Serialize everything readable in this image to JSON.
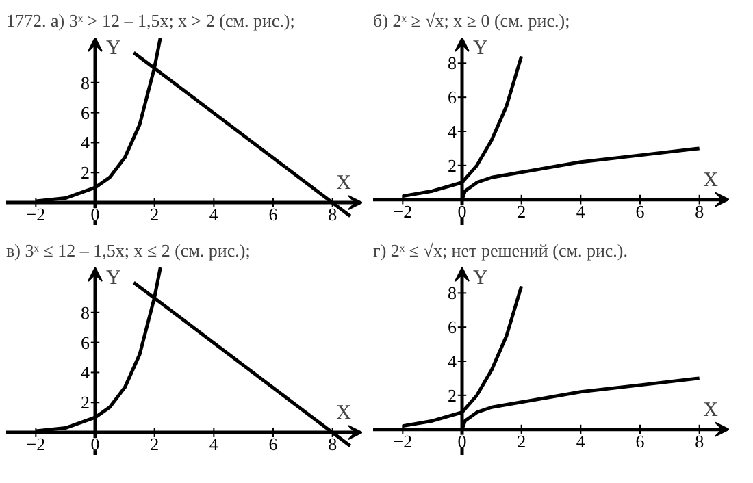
{
  "chart_data": [
    {
      "type": "line",
      "title": "1772. а) 3ˣ > 12 – 1,5x; x > 2 (см. рис.);",
      "xlabel": "X",
      "ylabel": "Y",
      "xlim": [
        -3,
        9
      ],
      "ylim": [
        -1.5,
        11
      ],
      "xticks": [
        -2,
        0,
        2,
        4,
        6,
        8
      ],
      "yticks": [
        2,
        4,
        6,
        8
      ],
      "grid": false,
      "series": [
        {
          "color": "#000000",
          "x": [
            -2,
            -1,
            0,
            0.5,
            1,
            1.5,
            2,
            2.2
          ],
          "values": [
            0.1,
            0.3,
            1,
            1.7,
            3,
            5.2,
            9,
            11
          ]
        },
        {
          "color": "#000000",
          "x": [
            1.3,
            8.6
          ],
          "values": [
            10,
            -0.9
          ]
        }
      ]
    },
    {
      "type": "line",
      "title": "б) 2ˣ ≥ √x; x ≥ 0 (см. рис.);",
      "xlabel": "X",
      "ylabel": "Y",
      "xlim": [
        -3,
        9
      ],
      "ylim": [
        -1.5,
        9.5
      ],
      "xticks": [
        -2,
        0,
        2,
        4,
        6,
        8
      ],
      "yticks": [
        2,
        4,
        6,
        8
      ],
      "grid": false,
      "series": [
        {
          "color": "#000000",
          "x": [
            -2,
            -1,
            0,
            0.5,
            1,
            1.5,
            2
          ],
          "values": [
            0.2,
            0.5,
            1,
            2,
            3.5,
            5.5,
            8.4
          ]
        },
        {
          "color": "#000000",
          "x": [
            0,
            0.1,
            0.5,
            1,
            2,
            4,
            6,
            8
          ],
          "values": [
            0,
            0.5,
            1,
            1.3,
            1.6,
            2.2,
            2.6,
            3
          ]
        }
      ]
    },
    {
      "type": "line",
      "title": "в) 3ˣ ≤ 12 – 1,5x; x ≤ 2 (см. рис.);",
      "xlabel": "X",
      "ylabel": "Y",
      "xlim": [
        -3,
        9
      ],
      "ylim": [
        -1.5,
        11
      ],
      "xticks": [
        -2,
        0,
        2,
        4,
        6,
        8
      ],
      "yticks": [
        2,
        4,
        6,
        8
      ],
      "grid": false,
      "series": [
        {
          "color": "#000000",
          "x": [
            -2,
            -1,
            0,
            0.5,
            1,
            1.5,
            2,
            2.2
          ],
          "values": [
            0.1,
            0.3,
            1,
            1.7,
            3,
            5.2,
            9,
            11
          ]
        },
        {
          "color": "#000000",
          "x": [
            1.3,
            8.6
          ],
          "values": [
            10,
            -0.9
          ]
        }
      ]
    },
    {
      "type": "line",
      "title": "г) 2ˣ ≤ √x; нет решений (см. рис.).",
      "xlabel": "X",
      "ylabel": "Y",
      "xlim": [
        -3,
        9
      ],
      "ylim": [
        -1.5,
        9.5
      ],
      "xticks": [
        -2,
        0,
        2,
        4,
        6,
        8
      ],
      "yticks": [
        2,
        4,
        6,
        8
      ],
      "grid": false,
      "series": [
        {
          "color": "#000000",
          "x": [
            -2,
            -1,
            0,
            0.5,
            1,
            1.5,
            2
          ],
          "values": [
            0.2,
            0.5,
            1,
            2,
            3.5,
            5.5,
            8.4
          ]
        },
        {
          "color": "#000000",
          "x": [
            0,
            0.1,
            0.5,
            1,
            2,
            4,
            6,
            8
          ],
          "values": [
            0,
            0.5,
            1,
            1.3,
            1.6,
            2.2,
            2.6,
            3
          ]
        }
      ]
    }
  ]
}
